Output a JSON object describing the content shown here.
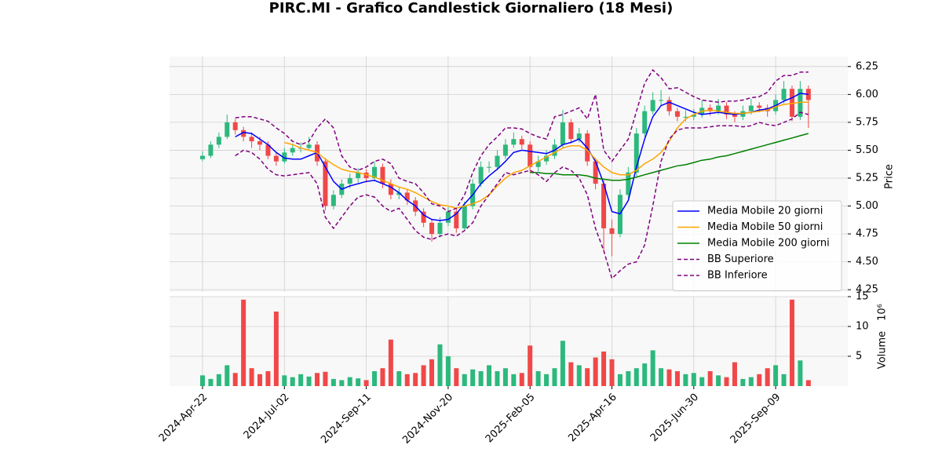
{
  "chart_data": {
    "type": "candlestick",
    "title": "PIRC.MI - Grafico Candlestick Giornaliero (18 Mesi)",
    "ylabel": "Price",
    "volume_label": "Volume",
    "volume_multiplier": "10⁶",
    "categories": [
      "2024-Apr-22",
      null,
      null,
      null,
      null,
      null,
      null,
      null,
      null,
      null,
      "2024-Jul-02",
      null,
      null,
      null,
      null,
      null,
      null,
      null,
      null,
      null,
      "2024-Sep-11",
      null,
      null,
      null,
      null,
      null,
      null,
      null,
      null,
      null,
      "2024-Nov-20",
      null,
      null,
      null,
      null,
      null,
      null,
      null,
      null,
      null,
      "2025-Feb-05",
      null,
      null,
      null,
      null,
      null,
      null,
      null,
      null,
      null,
      "2025-Apr-16",
      null,
      null,
      null,
      null,
      null,
      null,
      null,
      null,
      null,
      "2025-Jun-30",
      null,
      null,
      null,
      null,
      null,
      null,
      null,
      null,
      null,
      "2025-Sep-09",
      null,
      null,
      null,
      null
    ],
    "ohlc": [
      [
        5.42,
        5.49,
        5.4,
        5.45
      ],
      [
        5.45,
        5.58,
        5.43,
        5.55
      ],
      [
        5.55,
        5.66,
        5.52,
        5.62
      ],
      [
        5.62,
        5.82,
        5.6,
        5.75
      ],
      [
        5.75,
        5.78,
        5.64,
        5.68
      ],
      [
        5.68,
        5.71,
        5.58,
        5.62
      ],
      [
        5.62,
        5.66,
        5.52,
        5.58
      ],
      [
        5.58,
        5.62,
        5.5,
        5.55
      ],
      [
        5.55,
        5.58,
        5.42,
        5.45
      ],
      [
        5.45,
        5.48,
        5.36,
        5.4
      ],
      [
        5.4,
        5.52,
        5.38,
        5.48
      ],
      [
        5.48,
        5.56,
        5.45,
        5.52
      ],
      [
        5.52,
        5.57,
        5.48,
        5.52
      ],
      [
        5.52,
        5.62,
        5.5,
        5.55
      ],
      [
        5.55,
        5.58,
        5.36,
        5.4
      ],
      [
        5.4,
        5.43,
        4.96,
        5.0
      ],
      [
        5.0,
        5.14,
        4.97,
        5.1
      ],
      [
        5.1,
        5.24,
        5.07,
        5.2
      ],
      [
        5.2,
        5.29,
        5.16,
        5.25
      ],
      [
        5.25,
        5.34,
        5.21,
        5.3
      ],
      [
        5.3,
        5.33,
        5.21,
        5.25
      ],
      [
        5.25,
        5.4,
        5.22,
        5.35
      ],
      [
        5.35,
        5.38,
        5.16,
        5.2
      ],
      [
        5.2,
        5.24,
        5.06,
        5.1
      ],
      [
        5.1,
        5.17,
        5.06,
        5.12
      ],
      [
        5.12,
        5.15,
        5.01,
        5.05
      ],
      [
        5.05,
        5.08,
        4.91,
        4.95
      ],
      [
        4.95,
        4.98,
        4.81,
        4.85
      ],
      [
        4.85,
        4.88,
        4.68,
        4.75
      ],
      [
        4.75,
        4.9,
        4.72,
        4.85
      ],
      [
        4.85,
        4.99,
        4.82,
        4.95
      ],
      [
        4.95,
        4.98,
        4.76,
        4.8
      ],
      [
        4.8,
        5.04,
        4.78,
        5.0
      ],
      [
        5.0,
        5.24,
        4.97,
        5.2
      ],
      [
        5.2,
        5.4,
        5.17,
        5.35
      ],
      [
        5.35,
        5.4,
        5.3,
        5.35
      ],
      [
        5.35,
        5.5,
        5.32,
        5.45
      ],
      [
        5.45,
        5.6,
        5.42,
        5.55
      ],
      [
        5.55,
        5.66,
        5.52,
        5.6
      ],
      [
        5.6,
        5.63,
        5.51,
        5.55
      ],
      [
        5.55,
        5.58,
        5.3,
        5.35
      ],
      [
        5.35,
        5.45,
        5.31,
        5.4
      ],
      [
        5.4,
        5.5,
        5.37,
        5.45
      ],
      [
        5.45,
        5.6,
        5.42,
        5.55
      ],
      [
        5.55,
        5.86,
        5.52,
        5.75
      ],
      [
        5.75,
        5.78,
        5.56,
        5.6
      ],
      [
        5.6,
        5.7,
        5.57,
        5.65
      ],
      [
        5.65,
        5.68,
        5.36,
        5.4
      ],
      [
        5.4,
        5.43,
        5.15,
        5.2
      ],
      [
        5.2,
        5.23,
        4.6,
        4.8
      ],
      [
        4.8,
        4.88,
        4.55,
        4.75
      ],
      [
        4.75,
        5.15,
        4.72,
        5.1
      ],
      [
        5.1,
        5.35,
        5.07,
        5.3
      ],
      [
        5.3,
        5.7,
        5.27,
        5.65
      ],
      [
        5.65,
        5.9,
        5.62,
        5.85
      ],
      [
        5.85,
        6.02,
        5.82,
        5.95
      ],
      [
        5.95,
        6.04,
        5.9,
        5.95
      ],
      [
        5.95,
        5.98,
        5.81,
        5.85
      ],
      [
        5.85,
        5.88,
        5.76,
        5.8
      ],
      [
        5.8,
        5.86,
        5.76,
        5.8
      ],
      [
        5.8,
        5.87,
        5.77,
        5.82
      ],
      [
        5.82,
        5.95,
        5.79,
        5.88
      ],
      [
        5.88,
        5.91,
        5.81,
        5.85
      ],
      [
        5.85,
        5.96,
        5.82,
        5.9
      ],
      [
        5.9,
        5.93,
        5.78,
        5.82
      ],
      [
        5.82,
        5.85,
        5.75,
        5.8
      ],
      [
        5.8,
        5.9,
        5.77,
        5.85
      ],
      [
        5.85,
        5.96,
        5.82,
        5.9
      ],
      [
        5.9,
        5.93,
        5.84,
        5.88
      ],
      [
        5.88,
        5.91,
        5.8,
        5.85
      ],
      [
        5.85,
        6.0,
        5.82,
        5.95
      ],
      [
        5.95,
        6.12,
        5.92,
        6.05
      ],
      [
        6.05,
        6.08,
        5.76,
        5.8
      ],
      [
        5.8,
        6.12,
        5.77,
        6.05
      ],
      [
        6.05,
        6.08,
        5.7,
        5.95
      ]
    ],
    "volume": [
      1.8,
      1.2,
      2.0,
      3.5,
      2.2,
      14.5,
      3.0,
      2.0,
      2.5,
      12.5,
      1.8,
      1.5,
      2.0,
      1.6,
      2.2,
      2.4,
      1.2,
      1.0,
      1.5,
      1.3,
      1.0,
      2.5,
      3.0,
      7.8,
      2.5,
      2.0,
      2.2,
      3.5,
      4.5,
      7.0,
      5.0,
      3.0,
      2.0,
      2.8,
      2.5,
      3.5,
      2.5,
      3.0,
      2.0,
      2.2,
      6.8,
      2.5,
      2.0,
      3.0,
      7.6,
      4.0,
      3.5,
      3.0,
      4.8,
      5.8,
      4.5,
      2.0,
      2.5,
      3.0,
      3.8,
      6.0,
      3.0,
      2.8,
      2.5,
      2.0,
      2.2,
      1.5,
      2.5,
      1.8,
      1.5,
      4.0,
      1.2,
      1.5,
      2.0,
      3.0,
      3.5,
      2.0,
      14.5,
      4.3,
      1.0
    ],
    "up_color": "#2db87d",
    "down_color": "#f04848",
    "series": [
      {
        "name": "Media Mobile 20 giorni",
        "color": "#0000ff",
        "dash": false,
        "values": [
          null,
          null,
          null,
          null,
          5.62,
          5.66,
          5.65,
          5.6,
          5.55,
          5.48,
          5.43,
          5.42,
          5.42,
          5.45,
          5.48,
          5.35,
          5.22,
          5.15,
          5.18,
          5.2,
          5.22,
          5.23,
          5.2,
          5.17,
          5.12,
          5.05,
          5.0,
          4.92,
          4.88,
          4.87,
          4.88,
          4.93,
          5.02,
          5.1,
          5.2,
          5.27,
          5.33,
          5.4,
          5.48,
          5.5,
          5.49,
          5.48,
          5.47,
          5.5,
          5.55,
          5.57,
          5.6,
          5.52,
          5.4,
          5.2,
          4.95,
          4.93,
          5.05,
          5.35,
          5.6,
          5.8,
          5.9,
          5.93,
          5.9,
          5.87,
          5.84,
          5.82,
          5.83,
          5.84,
          5.83,
          5.82,
          5.83,
          5.84,
          5.86,
          5.87,
          5.9,
          5.94,
          5.97,
          6.01,
          6.0
        ]
      },
      {
        "name": "Media Mobile 50 giorni",
        "color": "#ffa500",
        "dash": false,
        "values": [
          null,
          null,
          null,
          null,
          null,
          null,
          null,
          null,
          null,
          null,
          5.57,
          5.55,
          5.52,
          5.5,
          5.48,
          5.42,
          5.37,
          5.33,
          5.31,
          5.3,
          5.28,
          5.26,
          5.23,
          5.2,
          5.17,
          5.15,
          5.12,
          5.08,
          5.04,
          5.01,
          5.0,
          4.98,
          5.0,
          5.02,
          5.05,
          5.1,
          5.18,
          5.25,
          5.3,
          5.32,
          5.36,
          5.4,
          5.44,
          5.48,
          5.52,
          5.54,
          5.54,
          5.5,
          5.42,
          5.35,
          5.3,
          5.28,
          5.28,
          5.32,
          5.38,
          5.42,
          5.48,
          5.58,
          5.7,
          5.78,
          5.82,
          5.85,
          5.86,
          5.85,
          5.84,
          5.83,
          5.83,
          5.84,
          5.85,
          5.86,
          5.89,
          5.91,
          5.92,
          5.93,
          5.93
        ]
      },
      {
        "name": "Media Mobile 200 giorni",
        "color": "#008000",
        "dash": false,
        "values": [
          null,
          null,
          null,
          null,
          null,
          null,
          null,
          null,
          null,
          null,
          null,
          null,
          null,
          null,
          null,
          null,
          null,
          null,
          null,
          null,
          null,
          null,
          null,
          null,
          null,
          null,
          null,
          null,
          null,
          null,
          null,
          null,
          null,
          null,
          null,
          null,
          null,
          null,
          null,
          null,
          5.3,
          5.3,
          5.29,
          5.29,
          5.28,
          5.28,
          5.28,
          5.27,
          5.25,
          5.24,
          5.23,
          5.23,
          5.24,
          5.26,
          5.28,
          5.3,
          5.32,
          5.34,
          5.36,
          5.37,
          5.39,
          5.41,
          5.42,
          5.44,
          5.45,
          5.47,
          5.49,
          5.51,
          5.53,
          5.55,
          5.57,
          5.59,
          5.61,
          5.63,
          5.65
        ]
      },
      {
        "name": "BB Superiore",
        "color": "#800080",
        "dash": true,
        "values": [
          null,
          null,
          null,
          null,
          5.79,
          5.8,
          5.8,
          5.78,
          5.76,
          5.7,
          5.65,
          5.58,
          5.55,
          5.58,
          5.7,
          5.78,
          5.7,
          5.45,
          5.35,
          5.32,
          5.35,
          5.4,
          5.42,
          5.38,
          5.25,
          5.22,
          5.2,
          5.12,
          5.02,
          5.0,
          4.95,
          4.98,
          5.1,
          5.3,
          5.45,
          5.55,
          5.62,
          5.7,
          5.7,
          5.69,
          5.65,
          5.62,
          5.6,
          5.8,
          5.82,
          5.85,
          5.88,
          5.78,
          6.0,
          5.5,
          5.4,
          5.5,
          5.6,
          5.85,
          6.1,
          6.22,
          6.15,
          6.05,
          6.06,
          6.02,
          5.98,
          5.95,
          5.94,
          5.93,
          5.94,
          5.94,
          5.95,
          5.97,
          5.98,
          6.02,
          6.12,
          6.17,
          6.17,
          6.2,
          6.2
        ]
      },
      {
        "name": "BB Inferiore",
        "color": "#800080",
        "dash": true,
        "values": [
          null,
          null,
          null,
          null,
          5.45,
          5.5,
          5.48,
          5.42,
          5.33,
          5.28,
          5.27,
          5.28,
          5.29,
          5.3,
          5.2,
          4.9,
          4.8,
          4.9,
          5.0,
          5.08,
          5.1,
          5.08,
          5.0,
          4.95,
          4.98,
          4.88,
          4.78,
          4.72,
          4.7,
          4.73,
          4.75,
          4.73,
          4.78,
          4.85,
          5.0,
          5.1,
          5.2,
          5.3,
          5.28,
          5.3,
          5.32,
          5.28,
          5.22,
          5.3,
          5.35,
          5.32,
          5.25,
          5.1,
          4.8,
          4.6,
          4.35,
          4.42,
          4.48,
          4.5,
          4.65,
          5.0,
          5.4,
          5.6,
          5.68,
          5.7,
          5.7,
          5.7,
          5.71,
          5.72,
          5.72,
          5.72,
          5.71,
          5.72,
          5.75,
          5.73,
          5.72,
          5.75,
          5.78,
          5.84,
          5.82
        ]
      }
    ],
    "ylim": [
      4.23,
      6.34
    ],
    "yticks": [
      4.25,
      {
        "value": 4.5,
        "label": "4.50"
      },
      4.75,
      {
        "value": 5,
        "label": "5.00"
      },
      5.25,
      {
        "value": 5.5,
        "label": "5.50"
      },
      5.75,
      {
        "value": 6,
        "label": "6.00"
      },
      6.25
    ],
    "volume_ylim": [
      0,
      15
    ],
    "volume_yticks": [
      5,
      10,
      15
    ],
    "grid": true,
    "legend": "right"
  }
}
